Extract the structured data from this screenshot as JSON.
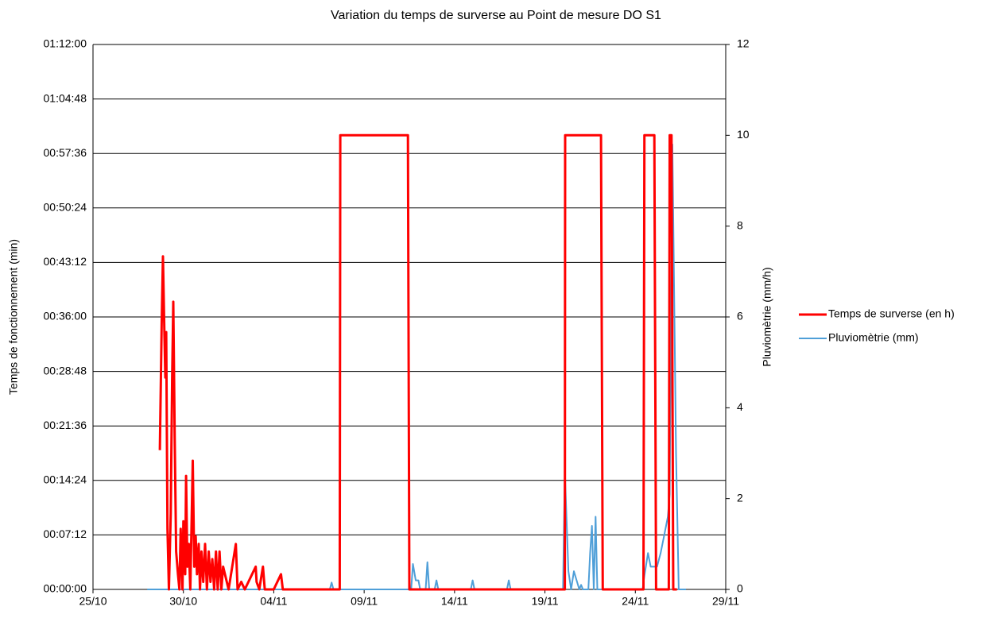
{
  "chart_data": {
    "type": "line",
    "title": "Variation du temps de surverse au Point de mesure DO S1",
    "y_label": "Temps de fonctionnement  (min)",
    "y2_label": "Pluviomètrie (mm/h)",
    "grid": true,
    "legend": "right",
    "xlim": [
      0,
      35
    ],
    "xticks": [
      {
        "value": 0,
        "label": "25/10"
      },
      {
        "value": 5,
        "label": "30/10"
      },
      {
        "value": 10,
        "label": "04/11"
      },
      {
        "value": 15,
        "label": "09/11"
      },
      {
        "value": 20,
        "label": "14/11"
      },
      {
        "value": 25,
        "label": "19/11"
      },
      {
        "value": 30,
        "label": "24/11"
      },
      {
        "value": 35,
        "label": "29/11"
      }
    ],
    "ylim": [
      0,
      72
    ],
    "yticks": [
      {
        "value": 0,
        "label": "00:00:00"
      },
      {
        "value": 7.2,
        "label": "00:07:12"
      },
      {
        "value": 14.4,
        "label": "00:14:24"
      },
      {
        "value": 21.6,
        "label": "00:21:36"
      },
      {
        "value": 28.8,
        "label": "00:28:48"
      },
      {
        "value": 36,
        "label": "00:36:00"
      },
      {
        "value": 43.2,
        "label": "00:43:12"
      },
      {
        "value": 50.4,
        "label": "00:50:24"
      },
      {
        "value": 57.6,
        "label": "00:57:36"
      },
      {
        "value": 64.8,
        "label": "01:04:48"
      },
      {
        "value": 72,
        "label": "01:12:00"
      }
    ],
    "y2lim": [
      0,
      12
    ],
    "y2ticks": [
      0,
      2,
      4,
      6,
      8,
      10,
      12
    ],
    "series": [
      {
        "name": "Temps de surverse (en h)",
        "color": "#ff0000",
        "axis": "y",
        "x": [
          3.7,
          3.8,
          3.87,
          3.95,
          4.0,
          4.05,
          4.12,
          4.2,
          4.3,
          4.38,
          4.44,
          4.52,
          4.6,
          4.7,
          4.78,
          4.85,
          4.95,
          5.0,
          5.1,
          5.15,
          5.22,
          5.3,
          5.38,
          5.45,
          5.52,
          5.6,
          5.68,
          5.75,
          5.85,
          5.92,
          6.0,
          6.1,
          6.2,
          6.3,
          6.4,
          6.5,
          6.6,
          6.7,
          6.8,
          6.9,
          7.0,
          7.1,
          7.2,
          7.5,
          7.9,
          8.0,
          8.2,
          8.4,
          9.0,
          9.05,
          9.2,
          9.4,
          9.5,
          10.0,
          10.4,
          10.5,
          13.65,
          13.68,
          17.42,
          17.5,
          26.1,
          26.12,
          28.1,
          28.2,
          30.45,
          30.5,
          31.05,
          31.15,
          31.85,
          31.9,
          32.0,
          32.1,
          32.3
        ],
        "values": [
          18.4,
          35,
          44,
          34,
          28,
          34,
          8,
          0,
          10,
          28,
          38,
          20,
          5,
          2,
          0,
          8,
          0,
          9,
          2,
          15,
          3,
          6,
          0,
          8,
          17,
          3,
          7,
          2,
          6,
          0,
          5,
          1,
          6,
          0,
          5,
          1,
          4,
          0,
          5,
          0,
          5,
          0,
          3,
          0,
          6,
          0,
          1,
          0,
          3,
          1,
          0,
          3,
          0,
          0,
          2,
          0,
          0,
          60,
          60,
          0,
          0,
          60,
          60,
          0,
          0,
          60,
          60,
          0,
          0,
          60,
          60,
          0,
          0
        ]
      },
      {
        "name": "Pluviomètrie (mm)",
        "color": "#4f9fd8",
        "axis": "y2",
        "x": [
          3.0,
          13.1,
          13.2,
          13.3,
          17.6,
          17.7,
          17.85,
          18.0,
          18.1,
          18.4,
          18.5,
          18.6,
          18.9,
          19.0,
          19.1,
          20.9,
          21.0,
          21.1,
          22.9,
          23.0,
          23.1,
          26.0,
          26.1,
          26.3,
          26.45,
          26.6,
          26.9,
          27.0,
          27.1,
          27.4,
          27.5,
          27.6,
          27.7,
          27.8,
          27.9,
          30.4,
          30.5,
          30.7,
          30.85,
          31.0,
          31.2,
          31.4,
          31.6,
          31.8,
          31.9,
          32.05,
          32.25,
          32.4,
          32.8
        ],
        "values": [
          0,
          0,
          0.15,
          0,
          0,
          0.56,
          0.2,
          0.2,
          0,
          0,
          0.6,
          0,
          0,
          0.2,
          0,
          0,
          0.2,
          0,
          0,
          0.2,
          0,
          0,
          2.6,
          0.4,
          0,
          0.4,
          0,
          0.1,
          0,
          0,
          0.8,
          1.4,
          0,
          1.6,
          0,
          0,
          0.3,
          0.8,
          0.5,
          0.5,
          0.5,
          0.8,
          1.2,
          1.6,
          2.1,
          9.8,
          3,
          0,
          0
        ]
      }
    ]
  }
}
